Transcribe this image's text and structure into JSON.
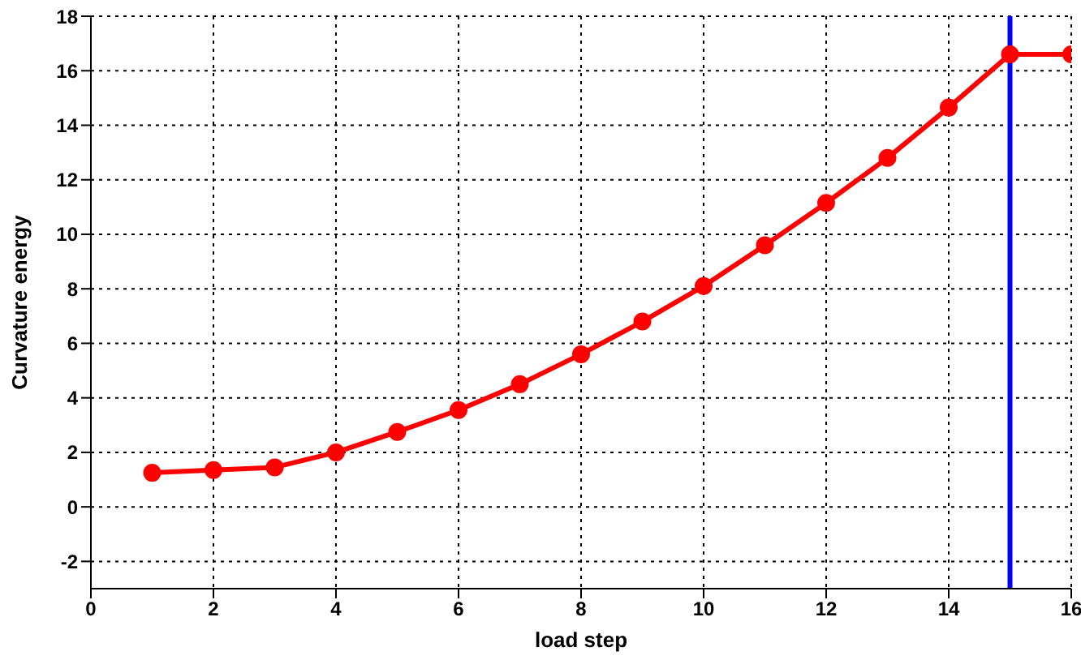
{
  "chart_data": {
    "type": "line",
    "xlabel": "load step",
    "ylabel": "Curvature energy",
    "x": [
      1,
      2,
      3,
      4,
      5,
      6,
      7,
      8,
      9,
      10,
      11,
      12,
      13,
      14,
      15,
      16
    ],
    "series": [
      {
        "color": "#ff0000",
        "values": [
          1.25,
          1.35,
          1.45,
          2.0,
          2.75,
          3.55,
          4.5,
          5.6,
          6.8,
          8.1,
          9.6,
          11.15,
          12.8,
          14.65,
          16.6,
          16.6
        ]
      }
    ],
    "xlim": [
      0,
      16
    ],
    "xticks": [
      0,
      2,
      4,
      6,
      8,
      10,
      12,
      14,
      16
    ],
    "ylim": [
      -3,
      18
    ],
    "yticks": [
      -2,
      0,
      2,
      4,
      6,
      8,
      10,
      12,
      14,
      16,
      18
    ],
    "ref_lines": [
      {
        "axis": "x",
        "value": 15,
        "color": "#0000ff"
      }
    ],
    "grid": true,
    "marker": "circle",
    "line_style": "solid",
    "legend": false
  }
}
